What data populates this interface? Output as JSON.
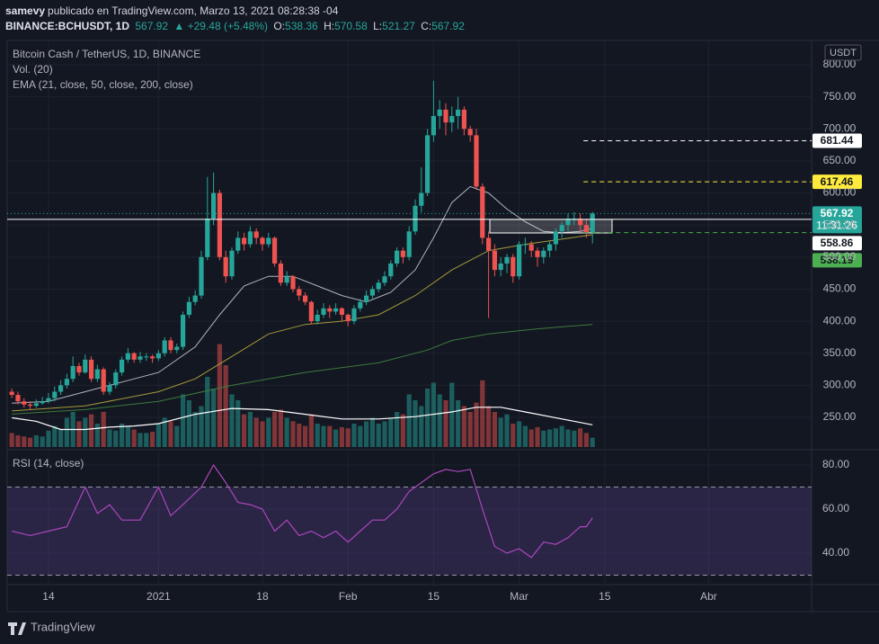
{
  "header": {
    "author": "samevy",
    "published": "publicado en TradingView.com, Marzo 13, 2021 08:28:38 -04",
    "symbol": "BINANCE:BCHUSDT, 1D",
    "last": 567.92,
    "change": "▲ +29.48 (+5.48%)",
    "o_label": "O:",
    "o": 538.36,
    "h_label": "H:",
    "h": 570.58,
    "l_label": "L:",
    "l": 521.27,
    "c_label": "C:",
    "c": 567.92
  },
  "footer": {
    "brand": "TradingView"
  },
  "chart_data": {
    "type": "candlestick",
    "title": "Bitcoin Cash / TetherUS, 1D, BINANCE",
    "volume_label": "Vol. (20)",
    "ema_label": "EMA (21, close, 50, close, 200, close)",
    "currency": "USDT",
    "countdown": "11:31:26",
    "x": [
      -6,
      -5,
      -4,
      -3,
      -2,
      -1,
      0,
      1,
      2,
      3,
      4,
      5,
      6,
      7,
      8,
      9,
      10,
      11,
      12,
      13,
      14,
      15,
      16,
      17,
      18,
      19,
      20,
      21,
      22,
      23,
      24,
      25,
      26,
      27,
      28,
      29,
      30,
      31,
      32,
      33,
      34,
      35,
      36,
      37,
      38,
      39,
      40,
      41,
      42,
      43,
      44,
      45,
      46,
      47,
      48,
      49,
      50,
      51,
      52,
      53,
      54,
      55,
      56,
      57,
      58,
      59,
      60,
      61,
      62,
      63,
      64,
      65,
      66,
      67,
      68,
      69,
      70,
      71,
      72,
      73,
      74,
      75,
      76,
      77,
      78,
      79,
      80,
      81,
      82,
      83,
      84,
      85,
      86,
      87,
      88,
      89
    ],
    "open": [
      290,
      285,
      275,
      270,
      268,
      272,
      275,
      280,
      290,
      300,
      310,
      330,
      320,
      340,
      310,
      325,
      290,
      300,
      320,
      340,
      350,
      340,
      345,
      345,
      342,
      350,
      370,
      355,
      360,
      410,
      430,
      440,
      500,
      560,
      600,
      500,
      470,
      510,
      530,
      520,
      540,
      530,
      520,
      530,
      490,
      460,
      470,
      450,
      440,
      430,
      400,
      410,
      420,
      415,
      420,
      410,
      400,
      420,
      430,
      440,
      450,
      460,
      470,
      490,
      510,
      500,
      540,
      580,
      600,
      690,
      720,
      730,
      710,
      720,
      730,
      700,
      690,
      610,
      530,
      510,
      480,
      490,
      500,
      470,
      520,
      520,
      510,
      500,
      510,
      520,
      540,
      550,
      560,
      560,
      550,
      538.36
    ],
    "high": [
      295,
      290,
      280,
      275,
      278,
      282,
      288,
      298,
      308,
      318,
      345,
      335,
      348,
      345,
      332,
      328,
      305,
      325,
      345,
      358,
      352,
      352,
      350,
      348,
      355,
      375,
      375,
      365,
      415,
      438,
      448,
      510,
      625,
      632,
      605,
      510,
      515,
      540,
      538,
      548,
      545,
      532,
      538,
      532,
      495,
      478,
      472,
      455,
      445,
      432,
      418,
      428,
      425,
      428,
      422,
      412,
      425,
      435,
      448,
      455,
      465,
      478,
      495,
      515,
      515,
      548,
      590,
      640,
      700,
      775,
      745,
      740,
      735,
      750,
      735,
      705,
      700,
      615,
      540,
      520,
      500,
      505,
      505,
      525,
      530,
      525,
      515,
      515,
      525,
      545,
      555,
      568,
      570,
      568,
      560,
      570.58
    ],
    "low": [
      280,
      270,
      265,
      262,
      265,
      270,
      272,
      275,
      285,
      295,
      305,
      315,
      318,
      305,
      305,
      285,
      285,
      295,
      315,
      335,
      335,
      335,
      338,
      335,
      338,
      345,
      350,
      350,
      355,
      405,
      425,
      435,
      495,
      550,
      495,
      460,
      465,
      505,
      510,
      515,
      520,
      510,
      515,
      485,
      455,
      455,
      445,
      432,
      425,
      395,
      395,
      405,
      405,
      410,
      400,
      392,
      395,
      415,
      425,
      435,
      445,
      455,
      465,
      485,
      490,
      495,
      535,
      570,
      595,
      680,
      700,
      690,
      695,
      700,
      690,
      680,
      605,
      520,
      405,
      470,
      470,
      475,
      460,
      465,
      505,
      500,
      485,
      490,
      500,
      510,
      530,
      540,
      550,
      540,
      530,
      521.27
    ],
    "close": [
      285,
      275,
      270,
      268,
      272,
      275,
      280,
      290,
      300,
      310,
      330,
      320,
      340,
      310,
      325,
      290,
      300,
      320,
      340,
      350,
      340,
      345,
      345,
      342,
      350,
      370,
      355,
      360,
      410,
      430,
      440,
      500,
      560,
      600,
      500,
      470,
      510,
      530,
      520,
      540,
      530,
      520,
      530,
      490,
      460,
      470,
      450,
      440,
      430,
      400,
      410,
      420,
      415,
      420,
      410,
      400,
      420,
      430,
      440,
      450,
      460,
      470,
      490,
      510,
      500,
      540,
      580,
      600,
      690,
      720,
      730,
      710,
      720,
      730,
      700,
      690,
      610,
      530,
      510,
      480,
      490,
      500,
      470,
      520,
      520,
      510,
      500,
      510,
      520,
      540,
      550,
      560,
      560,
      550,
      538.36,
      567.92
    ],
    "up_color": "#26a69a",
    "down_color": "#ef5350",
    "volume": [
      12,
      10,
      9,
      8,
      10,
      9,
      14,
      18,
      15,
      25,
      30,
      22,
      25,
      28,
      20,
      30,
      15,
      14,
      20,
      18,
      15,
      12,
      12,
      13,
      20,
      25,
      22,
      18,
      45,
      40,
      30,
      35,
      60,
      50,
      88,
      70,
      45,
      40,
      28,
      30,
      25,
      22,
      25,
      30,
      32,
      25,
      22,
      20,
      18,
      28,
      20,
      18,
      18,
      15,
      17,
      16,
      20,
      18,
      22,
      25,
      20,
      22,
      25,
      30,
      28,
      45,
      40,
      35,
      50,
      55,
      45,
      40,
      55,
      40,
      35,
      30,
      38,
      57,
      35,
      30,
      25,
      28,
      20,
      22,
      18,
      15,
      17,
      14,
      15,
      16,
      18,
      15,
      14,
      16,
      12,
      8
    ],
    "volume_ma": {
      "color": "#ffffff",
      "x": [
        -6,
        -2,
        2,
        6,
        10,
        14,
        18,
        24,
        30,
        36,
        42,
        48,
        54,
        60,
        66,
        70,
        74,
        78,
        84,
        89
      ],
      "values": [
        25,
        22,
        15,
        15,
        17,
        18,
        20,
        28,
        33,
        32,
        28,
        24,
        24,
        26,
        30,
        34,
        34,
        30,
        24,
        19
      ]
    },
    "ema": [
      {
        "color": "#b2b5be",
        "x": [
          -6,
          0,
          6,
          12,
          18,
          24,
          28,
          32,
          36,
          40,
          44,
          48,
          52,
          56,
          60,
          63,
          66,
          69,
          72,
          75,
          78,
          81,
          84,
          87,
          89
        ],
        "values": [
          272,
          275,
          290,
          305,
          320,
          360,
          410,
          455,
          470,
          470,
          455,
          440,
          430,
          445,
          480,
          530,
          585,
          610,
          600,
          575,
          555,
          540,
          538,
          540,
          545
        ]
      },
      {
        "color": "#a59a3a",
        "x": [
          -6,
          6,
          18,
          24,
          30,
          36,
          42,
          48,
          54,
          60,
          66,
          72,
          78,
          84,
          89
        ],
        "values": [
          260,
          268,
          290,
          310,
          345,
          380,
          395,
          400,
          410,
          440,
          480,
          510,
          520,
          528,
          535
        ]
      },
      {
        "color": "#3d7a3d",
        "x": [
          -6,
          6,
          18,
          30,
          42,
          54,
          62,
          66,
          72,
          80,
          89
        ],
        "values": [
          255,
          262,
          275,
          300,
          320,
          335,
          355,
          370,
          380,
          388,
          395
        ]
      }
    ],
    "xlim": [
      -6.76,
      124.85
    ],
    "xticks": [
      {
        "value": 0,
        "label": "14"
      },
      {
        "value": 18,
        "label": "2021"
      },
      {
        "value": 35,
        "label": "18"
      },
      {
        "value": 49,
        "label": "Feb"
      },
      {
        "value": 63,
        "label": "15"
      },
      {
        "value": 77,
        "label": "Mar"
      },
      {
        "value": 91,
        "label": "15"
      },
      {
        "value": 108,
        "label": "Abr"
      }
    ],
    "ylim": [
      203.7,
      837.9
    ],
    "yticks": [
      {
        "value": 250,
        "label": "250.00"
      },
      {
        "value": 300,
        "label": "300.00"
      },
      {
        "value": 350,
        "label": "350.00"
      },
      {
        "value": 400,
        "label": "400.00"
      },
      {
        "value": 450,
        "label": "450.00"
      },
      {
        "value": 500,
        "label": "500.00"
      },
      {
        "value": 550,
        "label": "550.00"
      },
      {
        "value": 600,
        "label": "600.00"
      },
      {
        "value": 650,
        "label": "650.00"
      },
      {
        "value": 700,
        "label": "700.00"
      },
      {
        "value": 750,
        "label": "750.00"
      },
      {
        "value": 800,
        "label": "800.00"
      }
    ],
    "grid": true,
    "levels": [
      {
        "value": 681.44,
        "color": "#ffffff",
        "style": "dashed",
        "label_bg": "#ffffff",
        "label_color": "#131722"
      },
      {
        "value": 617.46,
        "color": "#ffeb3b",
        "style": "dashed",
        "label_bg": "#ffeb3b",
        "label_color": "#131722"
      },
      {
        "value": 567.92,
        "color": "#26a69a",
        "style": "dotted",
        "label_bg": "#26a69a",
        "label_color": "#ffffff",
        "countdown": true
      },
      {
        "value": 558.86,
        "color": "#ffffff",
        "style": "solid",
        "label_bg": "#ffffff",
        "label_color": "#131722"
      },
      {
        "value": 538.19,
        "color": "#4caf50",
        "style": "dashed",
        "label_bg": "#4caf50",
        "label_color": "#131722"
      }
    ],
    "rsi": {
      "title": "RSI (14, close)",
      "color": "#ab47bc",
      "x": [
        -6,
        -3,
        0,
        3,
        6,
        8,
        10,
        12,
        15,
        18,
        20,
        22,
        25,
        27,
        29,
        31,
        33,
        35,
        37,
        39,
        41,
        43,
        45,
        47,
        49,
        51,
        53,
        55,
        57,
        59,
        61,
        63,
        65,
        67,
        69,
        71,
        73,
        75,
        77,
        79,
        81,
        83,
        85,
        87,
        88,
        89
      ],
      "values": [
        50,
        48,
        50,
        52,
        70,
        58,
        62,
        55,
        55,
        70,
        57,
        62,
        70,
        80,
        72,
        63,
        62,
        60,
        50,
        55,
        48,
        50,
        47,
        50,
        45,
        50,
        55,
        55,
        60,
        68,
        72,
        76,
        78,
        77,
        78,
        60,
        43,
        40,
        42,
        38,
        45,
        44,
        47,
        52,
        52,
        56
      ],
      "ylim": [
        25.7,
        85.7
      ],
      "yticks": [
        {
          "value": 40,
          "label": "40.00"
        },
        {
          "value": 60,
          "label": "60.00"
        },
        {
          "value": 80,
          "label": "80.00"
        }
      ],
      "bands": [
        30,
        70
      ],
      "band_color": "#7e57c2"
    }
  }
}
